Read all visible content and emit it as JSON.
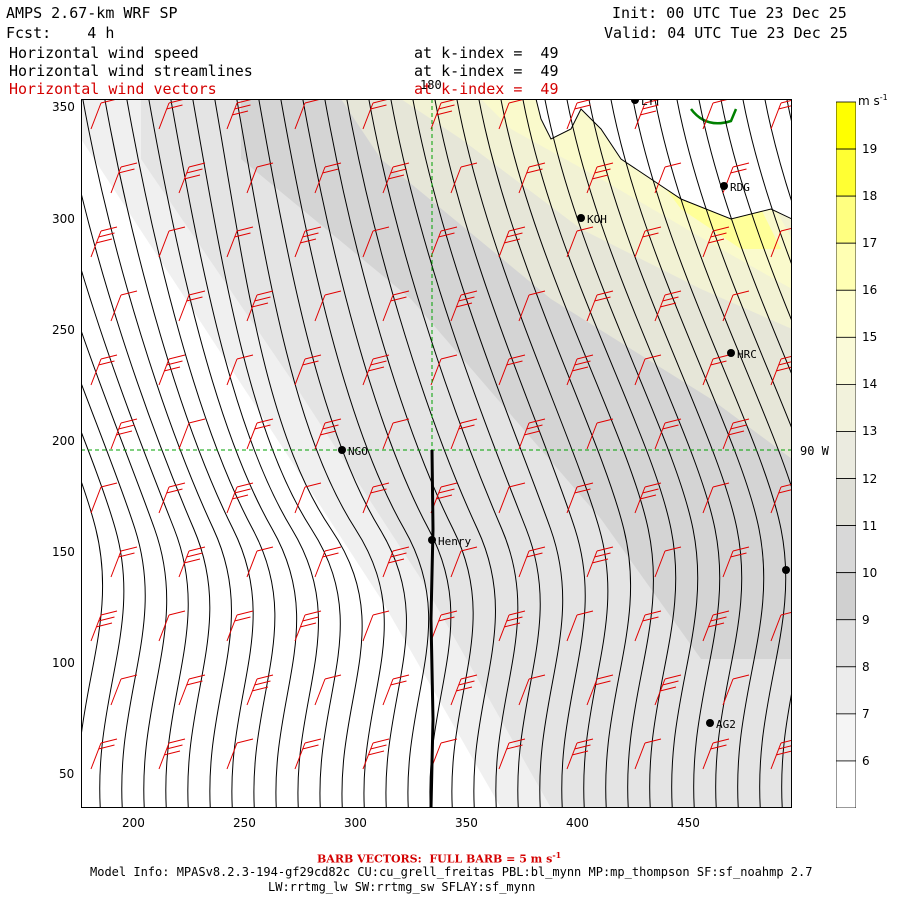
{
  "header": {
    "model": "AMPS 2.67-km WRF SP",
    "init": "Init: 00 UTC Tue 23 Dec 25",
    "fcst": "Fcst:    4 h",
    "valid": "Valid: 04 UTC Tue 23 Dec 25"
  },
  "fields": [
    {
      "label": "Horizontal wind speed",
      "level": "at k-index =  49",
      "color": "#000000"
    },
    {
      "label": "Horizontal wind streamlines",
      "level": "at k-index =  49",
      "color": "#000000"
    },
    {
      "label": "Horizontal wind vectors",
      "level": "at k-index =  49",
      "color": "#d40000"
    }
  ],
  "axes": {
    "x_ticks": [
      "200",
      "250",
      "300",
      "350",
      "400",
      "450"
    ],
    "y_ticks": [
      "350",
      "300",
      "250",
      "200",
      "150",
      "100",
      "50"
    ]
  },
  "grid_labels": {
    "meridian": "180",
    "parallel": "90 W"
  },
  "stations": [
    {
      "name": "NGO"
    },
    {
      "name": "Henry"
    },
    {
      "name": "KOH"
    },
    {
      "name": "RDG"
    },
    {
      "name": "HRC"
    },
    {
      "name": "AG2"
    },
    {
      "name": "LYT"
    }
  ],
  "colorbar": {
    "unit": "m s",
    "unit_exp": "-1",
    "labels": [
      "19",
      "18",
      "17",
      "16",
      "15",
      "14",
      "13",
      "12",
      "11",
      "10",
      "9",
      "8",
      "7",
      "6"
    ],
    "colors": [
      "#ffff00",
      "#ffff33",
      "#ffff80",
      "#ffffb3",
      "#ffffcc",
      "#fafad8",
      "#f2f2dc",
      "#ebebe0",
      "#e0e0d8",
      "#d8d8d8",
      "#d0d0d0",
      "#e0e0e0",
      "#ececec",
      "#f5f5f5",
      "#ffffff"
    ]
  },
  "footer": {
    "barb": "BARB VECTORS:  FULL BARB = 5 m s",
    "barb_exp": "-1",
    "model_info": "Model Info: MPASv8.2.3-194-gf29cd82c CU:cu_grell_freitas PBL:bl_mynn MP:mp_thompson SF:sf_noahmp 2.7",
    "schemes": "LW:rrtmg_lw SW:rrtmg_sw SFLAY:sf_mynn"
  }
}
